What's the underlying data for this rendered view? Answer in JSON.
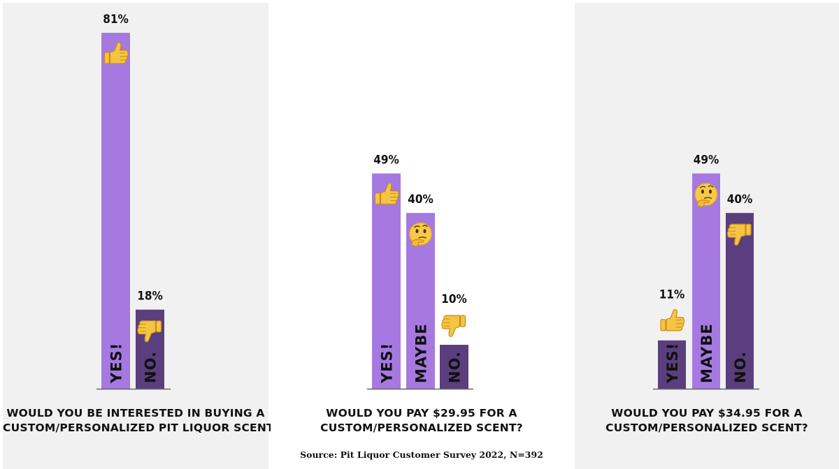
{
  "colors": {
    "light_purple": "#a579e0",
    "dark_purple": "#5a3e7d",
    "panel_grey": "#f1f1f1",
    "baseline": "#666666"
  },
  "chart_data": [
    {
      "type": "bar",
      "title": "WOULD YOU BE INTERESTED IN BUYING A CUSTOM/PERSONALIZED PIT LIQUOR SCENT?",
      "title_lines": [
        "WOULD YOU BE INTERESTED IN BUYING A",
        "CUSTOM/PERSONALIZED PIT LIQUOR SCENT?"
      ],
      "categories": [
        "YES!",
        "NO."
      ],
      "values": [
        81,
        18
      ],
      "value_labels": [
        "81%",
        "18%"
      ],
      "icons": [
        "thumbs-up-icon",
        "thumbs-down-icon"
      ],
      "bar_colors": [
        "#a579e0",
        "#5a3e7d"
      ],
      "ylim": [
        0,
        81
      ],
      "unit": "%"
    },
    {
      "type": "bar",
      "title": "WOULD YOU PAY $29.95 FOR A CUSTOM/PERSONALIZED SCENT?",
      "title_lines": [
        "WOULD YOU PAY $29.95 FOR A",
        "CUSTOM/PERSONALIZED SCENT?"
      ],
      "categories": [
        "YES!",
        "MAYBE",
        "NO."
      ],
      "values": [
        49,
        40,
        10
      ],
      "value_labels": [
        "49%",
        "40%",
        "10%"
      ],
      "icons": [
        "thumbs-up-icon",
        "thinking-face-icon",
        "thumbs-down-icon"
      ],
      "bar_colors": [
        "#a579e0",
        "#a579e0",
        "#5a3e7d"
      ],
      "ylim": [
        0,
        81
      ],
      "unit": "%"
    },
    {
      "type": "bar",
      "title": "WOULD YOU PAY $34.95 FOR A CUSTOM/PERSONALIZED SCENT?",
      "title_lines": [
        "WOULD YOU PAY $34.95 FOR A",
        "CUSTOM/PERSONALIZED SCENT?"
      ],
      "categories": [
        "YES!",
        "MAYBE",
        "NO."
      ],
      "values": [
        11,
        49,
        40
      ],
      "value_labels": [
        "11%",
        "49%",
        "40%"
      ],
      "icons": [
        "thumbs-up-icon",
        "thinking-face-icon",
        "thumbs-down-icon"
      ],
      "bar_colors": [
        "#5a3e7d",
        "#a579e0",
        "#5a3e7d"
      ],
      "ylim": [
        0,
        81
      ],
      "unit": "%"
    }
  ],
  "source": "Source: Pit Liquor Customer Survey 2022, N=392"
}
